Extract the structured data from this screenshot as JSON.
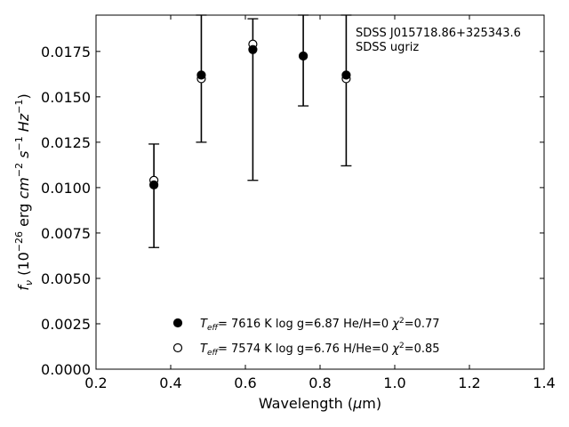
{
  "chart_data": {
    "type": "scatter",
    "title": "",
    "xlabel": "Wavelength (μm)",
    "ylabel": "f_ν (10^-26 erg cm^-2 s^-1 Hz^-1)",
    "xlim": [
      0.2,
      1.4
    ],
    "ylim": [
      0.0,
      0.0195
    ],
    "xticks": [
      "0.2",
      "0.4",
      "0.6",
      "0.8",
      "1.0",
      "1.2",
      "1.4"
    ],
    "yticks": [
      "0.0000",
      "0.0025",
      "0.0050",
      "0.0075",
      "0.0100",
      "0.0125",
      "0.0150",
      "0.0175"
    ],
    "annotation": [
      "SDSS J015718.86+325343.6",
      "SDSS ugriz"
    ],
    "observed": [
      {
        "x": 0.355,
        "y": 0.01015,
        "ylow": 0.0067,
        "yhigh": 0.0124
      },
      {
        "x": 0.482,
        "y": 0.0162,
        "ylow": 0.0125,
        "yhigh": 0.0195
      },
      {
        "x": 0.62,
        "y": 0.0176,
        "ylow": 0.0104,
        "yhigh": 0.0193
      },
      {
        "x": 0.755,
        "y": 0.01725,
        "ylow": 0.0145,
        "yhigh": 0.0195
      },
      {
        "x": 0.87,
        "y": 0.0162,
        "ylow": 0.0112,
        "yhigh": 0.0195
      }
    ],
    "series": [
      {
        "name": "T_eff=  7616 K  log g=6.87  He/H=0  χ²=0.77",
        "marker": "filled-circle",
        "x": [
          0.355,
          0.482,
          0.62,
          0.755,
          0.87
        ],
        "values": [
          0.01015,
          0.0162,
          0.0176,
          0.01725,
          0.0162
        ]
      },
      {
        "name": "T_eff=  7574 K  log g=6.76  H/He=0  χ²=0.85",
        "marker": "open-circle",
        "x": [
          0.355,
          0.482,
          0.62,
          0.755,
          0.87
        ],
        "values": [
          0.0104,
          0.016,
          0.0179,
          0.01725,
          0.016
        ]
      }
    ],
    "legend_placement": "bottom-center",
    "grid": false
  }
}
